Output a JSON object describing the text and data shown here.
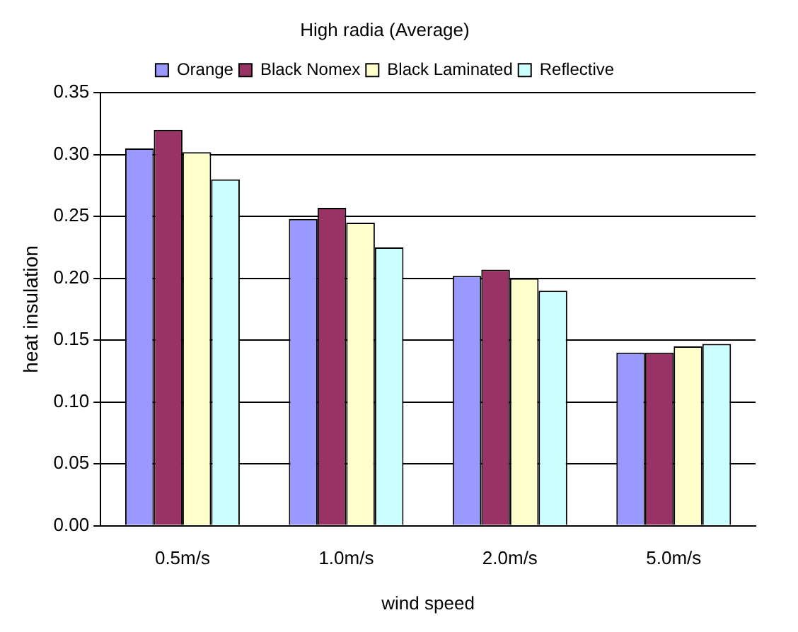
{
  "chart_data": {
    "type": "bar",
    "title": "High radia (Average)",
    "xlabel": "wind speed",
    "ylabel": "heat insulation",
    "categories": [
      "0.5m/s",
      "1.0m/s",
      "2.0m/s",
      "5.0m/s"
    ],
    "series": [
      {
        "name": "Orange",
        "color": "#9999ff",
        "values": [
          0.305,
          0.248,
          0.202,
          0.14
        ]
      },
      {
        "name": "Black Nomex",
        "color": "#993366",
        "values": [
          0.32,
          0.257,
          0.207,
          0.14
        ]
      },
      {
        "name": "Black Laminated",
        "color": "#ffffcc",
        "values": [
          0.302,
          0.245,
          0.2,
          0.145
        ]
      },
      {
        "name": "Reflective",
        "color": "#ccffff",
        "values": [
          0.28,
          0.225,
          0.19,
          0.147
        ]
      }
    ],
    "ylim": [
      0,
      0.35
    ],
    "yticks": [
      {
        "value": 0,
        "label": "0.00"
      },
      {
        "value": 0.05,
        "label": "0.05"
      },
      {
        "value": 0.1,
        "label": "0.10"
      },
      {
        "value": 0.15,
        "label": "0.15"
      },
      {
        "value": 0.2,
        "label": "0.20"
      },
      {
        "value": 0.25,
        "label": "0.25"
      },
      {
        "value": 0.3,
        "label": "0.30"
      },
      {
        "value": 0.35,
        "label": "0.35"
      }
    ],
    "grid": "y",
    "legend": "top"
  }
}
